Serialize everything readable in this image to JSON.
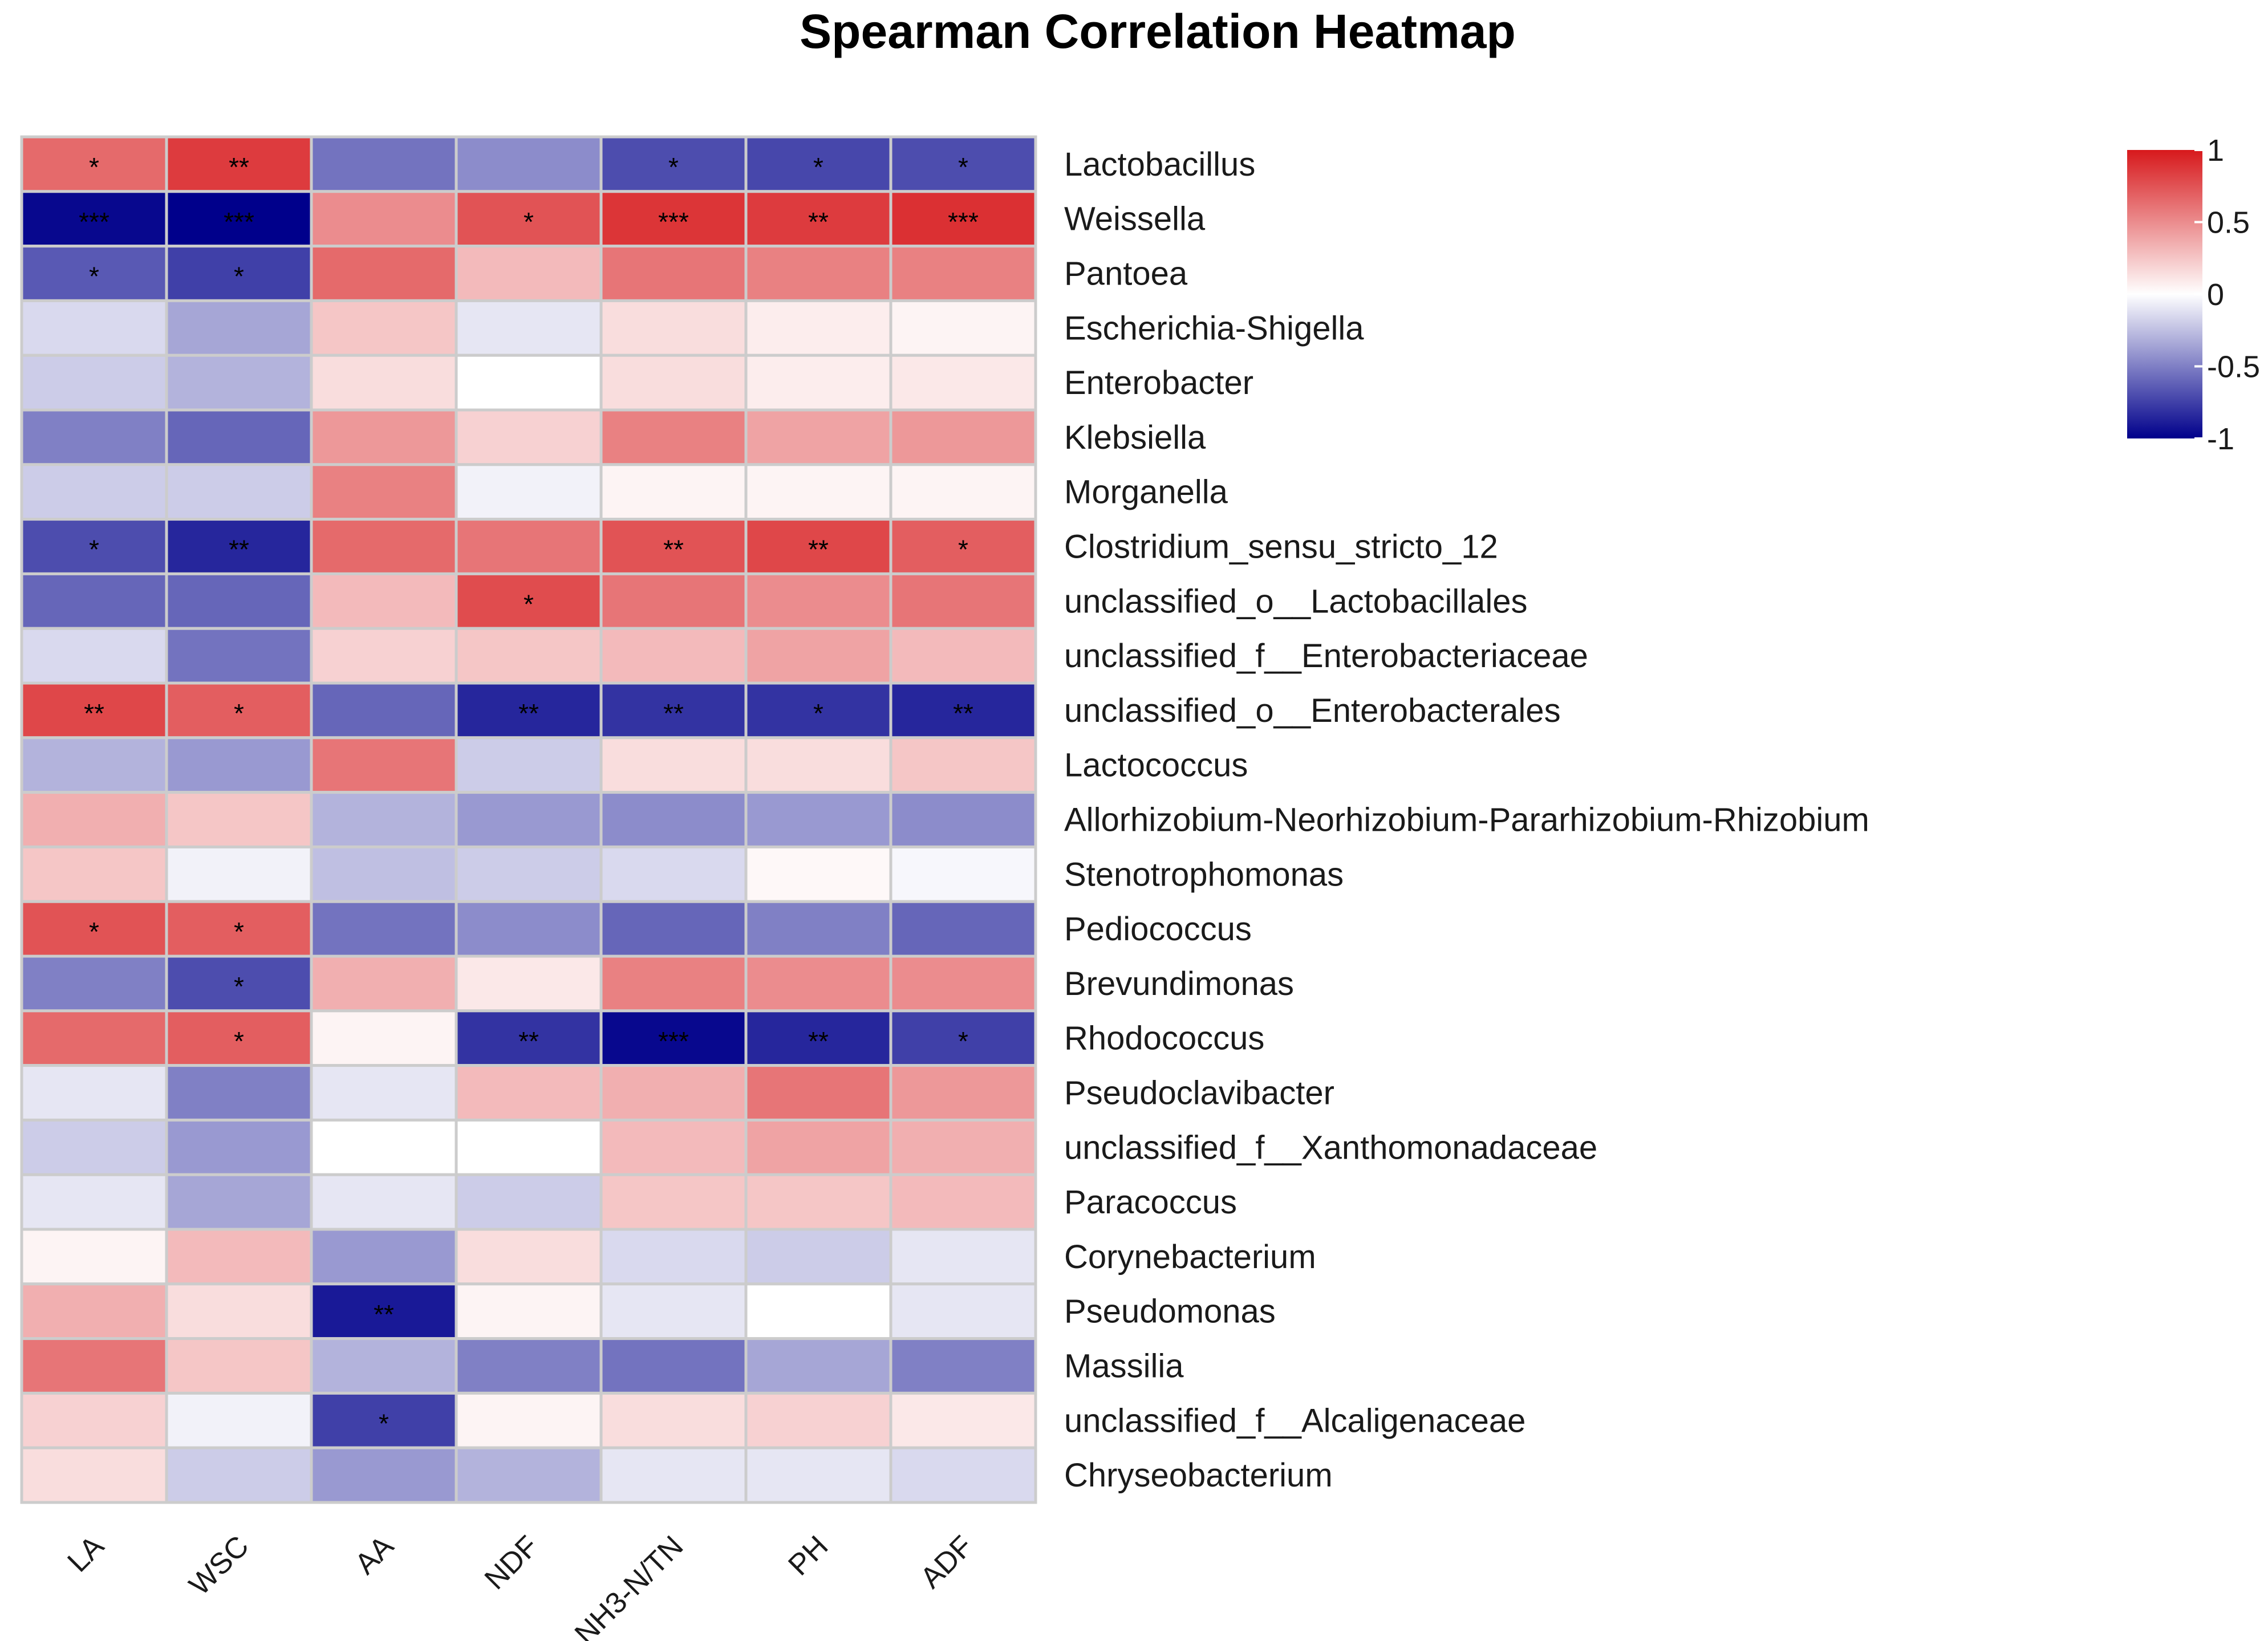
{
  "chart_data": {
    "type": "heatmap",
    "title": "Spearman Correlation Heatmap",
    "xlabel": "",
    "ylabel": "",
    "columns": [
      "LA",
      "WSC",
      "AA",
      "NDF",
      "NH3-N/TN",
      "PH",
      "ADF"
    ],
    "rows": [
      "Lactobacillus",
      "Weissella",
      "Pantoea",
      "Escherichia-Shigella",
      "Enterobacter",
      "Klebsiella",
      "Morganella",
      "Clostridium_sensu_stricto_12",
      "unclassified_o__Lactobacillales",
      "unclassified_f__Enterobacteriaceae",
      "unclassified_o__Enterobacterales",
      "Lactococcus",
      "Allorhizobium-Neorhizobium-Pararhizobium-Rhizobium",
      "Stenotrophomonas",
      "Pediococcus",
      "Brevundimonas",
      "Rhodococcus",
      "Pseudoclavibacter",
      "unclassified_f__Xanthomonadaceae",
      "Paracoccus",
      "Corynebacterium",
      "Pseudomonas",
      "Massilia",
      "unclassified_f__Alcaligenaceae",
      "Chryseobacterium"
    ],
    "values": [
      [
        0.65,
        0.85,
        -0.55,
        -0.45,
        -0.7,
        -0.72,
        -0.7
      ],
      [
        -0.97,
        -1.0,
        0.5,
        0.75,
        0.88,
        0.85,
        0.9
      ],
      [
        -0.65,
        -0.75,
        0.65,
        0.3,
        0.6,
        0.55,
        0.55
      ],
      [
        -0.15,
        -0.35,
        0.25,
        -0.1,
        0.15,
        0.08,
        0.05
      ],
      [
        -0.2,
        -0.3,
        0.15,
        0.0,
        0.15,
        0.08,
        0.1
      ],
      [
        -0.5,
        -0.6,
        0.45,
        0.2,
        0.55,
        0.4,
        0.45
      ],
      [
        -0.2,
        -0.2,
        0.55,
        -0.05,
        0.05,
        0.05,
        0.05
      ],
      [
        -0.7,
        -0.85,
        0.65,
        0.6,
        0.75,
        0.8,
        0.7
      ],
      [
        -0.6,
        -0.6,
        0.3,
        0.78,
        0.6,
        0.5,
        0.6
      ],
      [
        -0.15,
        -0.55,
        0.2,
        0.25,
        0.3,
        0.4,
        0.3
      ],
      [
        0.8,
        0.7,
        -0.6,
        -0.85,
        -0.8,
        -0.8,
        -0.85
      ],
      [
        -0.3,
        -0.4,
        0.6,
        -0.2,
        0.15,
        0.15,
        0.25
      ],
      [
        0.35,
        0.25,
        -0.3,
        -0.4,
        -0.45,
        -0.4,
        -0.45
      ],
      [
        0.25,
        -0.05,
        -0.25,
        -0.2,
        -0.15,
        0.03,
        -0.03
      ],
      [
        0.75,
        0.7,
        -0.55,
        -0.45,
        -0.6,
        -0.5,
        -0.6
      ],
      [
        -0.5,
        -0.7,
        0.35,
        0.1,
        0.55,
        0.5,
        0.5
      ],
      [
        0.65,
        0.7,
        0.05,
        -0.8,
        -0.97,
        -0.85,
        -0.75
      ],
      [
        -0.1,
        -0.5,
        -0.1,
        0.3,
        0.35,
        0.6,
        0.45
      ],
      [
        -0.2,
        -0.4,
        0.0,
        0.0,
        0.3,
        0.4,
        0.35
      ],
      [
        -0.1,
        -0.35,
        -0.1,
        -0.2,
        0.25,
        0.25,
        0.3
      ],
      [
        0.05,
        0.3,
        -0.4,
        0.15,
        -0.15,
        -0.2,
        -0.1
      ],
      [
        0.35,
        0.15,
        -0.9,
        0.05,
        -0.1,
        0.0,
        -0.1
      ],
      [
        0.6,
        0.25,
        -0.3,
        -0.5,
        -0.55,
        -0.35,
        -0.5
      ],
      [
        0.2,
        -0.05,
        -0.75,
        0.05,
        0.15,
        0.2,
        0.1
      ],
      [
        0.15,
        -0.2,
        -0.4,
        -0.3,
        -0.1,
        -0.1,
        -0.15
      ]
    ],
    "significance": [
      [
        "*",
        "**",
        "",
        "",
        "*",
        "*",
        "*"
      ],
      [
        "***",
        "***",
        "",
        "*",
        "***",
        "**",
        "***"
      ],
      [
        "*",
        "*",
        "",
        "",
        "",
        "",
        ""
      ],
      [
        "",
        "",
        "",
        "",
        "",
        "",
        ""
      ],
      [
        "",
        "",
        "",
        "",
        "",
        "",
        ""
      ],
      [
        "",
        "",
        "",
        "",
        "",
        "",
        ""
      ],
      [
        "",
        "",
        "",
        "",
        "",
        "",
        ""
      ],
      [
        "*",
        "**",
        "",
        "",
        "**",
        "**",
        "*"
      ],
      [
        "",
        "",
        "",
        "*",
        "",
        "",
        ""
      ],
      [
        "",
        "",
        "",
        "",
        "",
        "",
        ""
      ],
      [
        "**",
        "*",
        "",
        "**",
        "**",
        "*",
        "**"
      ],
      [
        "",
        "",
        "",
        "",
        "",
        "",
        ""
      ],
      [
        "",
        "",
        "",
        "",
        "",
        "",
        ""
      ],
      [
        "",
        "",
        "",
        "",
        "",
        "",
        ""
      ],
      [
        "*",
        "*",
        "",
        "",
        "",
        "",
        ""
      ],
      [
        "",
        "*",
        "",
        "",
        "",
        "",
        ""
      ],
      [
        "",
        "*",
        "",
        "**",
        "***",
        "**",
        "*"
      ],
      [
        "",
        "",
        "",
        "",
        "",
        "",
        ""
      ],
      [
        "",
        "",
        "",
        "",
        "",
        "",
        ""
      ],
      [
        "",
        "",
        "",
        "",
        "",
        "",
        ""
      ],
      [
        "",
        "",
        "",
        "",
        "",
        "",
        ""
      ],
      [
        "",
        "",
        "**",
        "",
        "",
        "",
        ""
      ],
      [
        "",
        "",
        "",
        "",
        "",
        "",
        ""
      ],
      [
        "",
        "",
        "*",
        "",
        "",
        "",
        ""
      ],
      [
        "",
        "",
        "",
        "",
        "",
        "",
        ""
      ]
    ],
    "color_scale": {
      "min": -1,
      "max": 1,
      "low_color": "#00008b",
      "mid_color": "#ffffff",
      "high_color": "#d7191c",
      "ticks": [
        "1",
        "0.5",
        "0",
        "-0.5",
        "-1"
      ]
    },
    "legend_position": "top-right",
    "grid_color": "#cccccc"
  }
}
